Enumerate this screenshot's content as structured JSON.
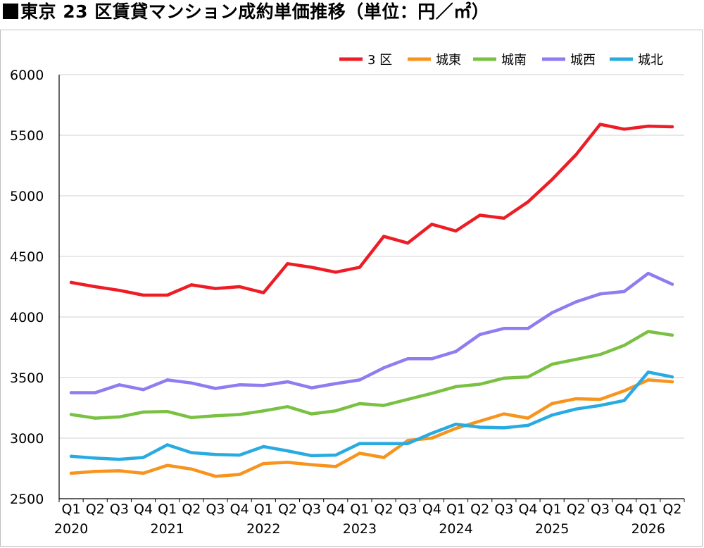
{
  "title": "東京 23 区賃貸マンション成約単価推移（単位：円／㎡）",
  "chart_data": {
    "type": "line",
    "title": "東京 23 区賃貸マンション成約単価推移（単位：円／㎡）",
    "xlabel": "",
    "ylabel": "",
    "ylim": [
      2500,
      6000
    ],
    "yticks": [
      "2500",
      "3000",
      "3500",
      "4000",
      "4500",
      "5000",
      "5500",
      "6000"
    ],
    "grid": "horizontal",
    "legend_position": "top-right",
    "quarters": [
      "Q1",
      "Q2",
      "Q3",
      "Q4",
      "Q1",
      "Q2",
      "Q3",
      "Q4",
      "Q1",
      "Q2",
      "Q3",
      "Q4",
      "Q1",
      "Q2",
      "Q3",
      "Q4",
      "Q1",
      "Q2",
      "Q3",
      "Q4",
      "Q1",
      "Q2",
      "Q3",
      "Q4",
      "Q1",
      "Q2"
    ],
    "years": [
      {
        "label": "2020",
        "index": 0
      },
      {
        "label": "2021",
        "index": 4
      },
      {
        "label": "2022",
        "index": 8
      },
      {
        "label": "2023",
        "index": 12
      },
      {
        "label": "2024",
        "index": 16
      },
      {
        "label": "2025",
        "index": 20
      },
      {
        "label": "2026",
        "index": 24
      }
    ],
    "series": [
      {
        "name": "3 区",
        "color": "#ee1c25",
        "values": [
          4285,
          4250,
          4220,
          4180,
          4180,
          4265,
          4235,
          4250,
          4200,
          4440,
          4410,
          4370,
          4410,
          4665,
          4610,
          4765,
          4710,
          4840,
          4815,
          4950,
          5135,
          5340,
          5590,
          5550,
          5575,
          5570
        ]
      },
      {
        "name": "城東",
        "color": "#f7941d",
        "values": [
          2710,
          2725,
          2730,
          2710,
          2775,
          2745,
          2685,
          2700,
          2790,
          2800,
          2780,
          2765,
          2875,
          2840,
          2980,
          3000,
          3080,
          3140,
          3200,
          3165,
          3285,
          3325,
          3320,
          3390,
          3480,
          3465
        ]
      },
      {
        "name": "城南",
        "color": "#7ac143",
        "values": [
          3195,
          3165,
          3175,
          3215,
          3220,
          3170,
          3185,
          3195,
          3225,
          3260,
          3200,
          3225,
          3285,
          3270,
          3320,
          3370,
          3425,
          3445,
          3495,
          3505,
          3610,
          3650,
          3690,
          3765,
          3880,
          3850
        ]
      },
      {
        "name": "城西",
        "color": "#8f7cf0",
        "values": [
          3375,
          3375,
          3440,
          3400,
          3480,
          3455,
          3410,
          3440,
          3435,
          3465,
          3415,
          3450,
          3480,
          3580,
          3655,
          3655,
          3715,
          3855,
          3905,
          3905,
          4035,
          4125,
          4190,
          4210,
          4360,
          4270
        ]
      },
      {
        "name": "城北",
        "color": "#29abe2",
        "values": [
          2850,
          2835,
          2825,
          2840,
          2945,
          2880,
          2865,
          2860,
          2930,
          2895,
          2855,
          2860,
          2955,
          2955,
          2955,
          3040,
          3115,
          3090,
          3085,
          3105,
          3190,
          3240,
          3270,
          3310,
          3545,
          3505
        ]
      }
    ]
  }
}
